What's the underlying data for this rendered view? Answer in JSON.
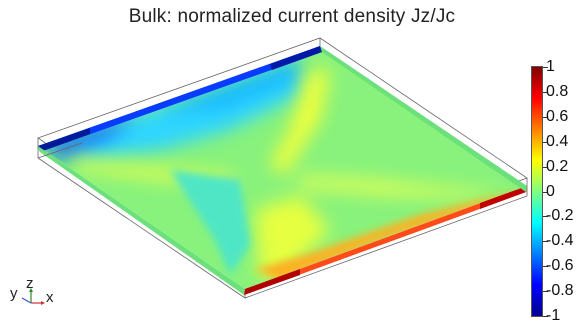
{
  "title": "Bulk: normalized current density Jz/Jc",
  "colorbar": {
    "ticks": [
      "1",
      "0.8",
      "0.6",
      "0.4",
      "0.2",
      "0",
      "-0.2",
      "-0.4",
      "-0.6",
      "-0.8",
      "-1"
    ],
    "range": [
      -1,
      1
    ],
    "colormap": "rainbow (dark blue → cyan → green → yellow → red → dark red)"
  },
  "axes": {
    "x": "x",
    "y": "y",
    "z": "z"
  },
  "colors": {
    "background": "#ffffff",
    "plate_base": "#88f27c",
    "low": "#00008f",
    "high": "#800000"
  }
}
